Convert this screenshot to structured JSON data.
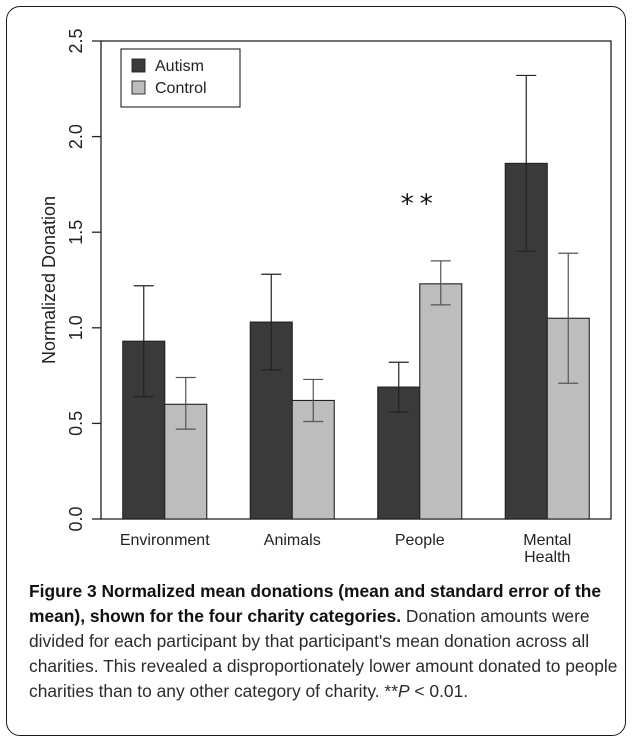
{
  "chart_data": {
    "type": "bar",
    "title": "",
    "xlabel": "",
    "ylabel": "Normalized Donation",
    "ylim": [
      0.0,
      2.5
    ],
    "yticks": [
      "0.0",
      "0.5",
      "1.0",
      "1.5",
      "2.0",
      "2.5"
    ],
    "categories": [
      "Environment",
      "Animals",
      "People",
      "Mental Health"
    ],
    "category_label_lines": [
      [
        "Environment"
      ],
      [
        "Animals"
      ],
      [
        "People"
      ],
      [
        "Mental",
        "Health"
      ]
    ],
    "series": [
      {
        "name": "Autism",
        "color": "#3a3a3a",
        "values": [
          0.93,
          1.03,
          0.69,
          1.86
        ],
        "error_low": [
          0.64,
          0.78,
          0.56,
          1.4
        ],
        "error_high": [
          1.22,
          1.28,
          0.82,
          2.32
        ]
      },
      {
        "name": "Control",
        "color": "#bdbdbd",
        "values": [
          0.6,
          0.62,
          1.23,
          1.05
        ],
        "error_low": [
          0.47,
          0.51,
          1.12,
          0.71
        ],
        "error_high": [
          0.74,
          0.73,
          1.35,
          1.39
        ]
      }
    ],
    "grid": false,
    "legend_position": "top-left",
    "annotations": [
      {
        "text": "**",
        "category": "People",
        "value": 1.55
      }
    ]
  },
  "caption": {
    "label": "Figure 3",
    "title": "Normalized mean donations (mean and standard error of the mean), shown for the four charity categories.",
    "body": "Donation amounts were divided for each participant by that participant's mean donation across all charities. This revealed a disproportionately lower amount donated to people charities than to any other category of charity.",
    "stat_prefix": "**",
    "stat_symbol": "P",
    "stat_suffix": " < 0.01."
  }
}
